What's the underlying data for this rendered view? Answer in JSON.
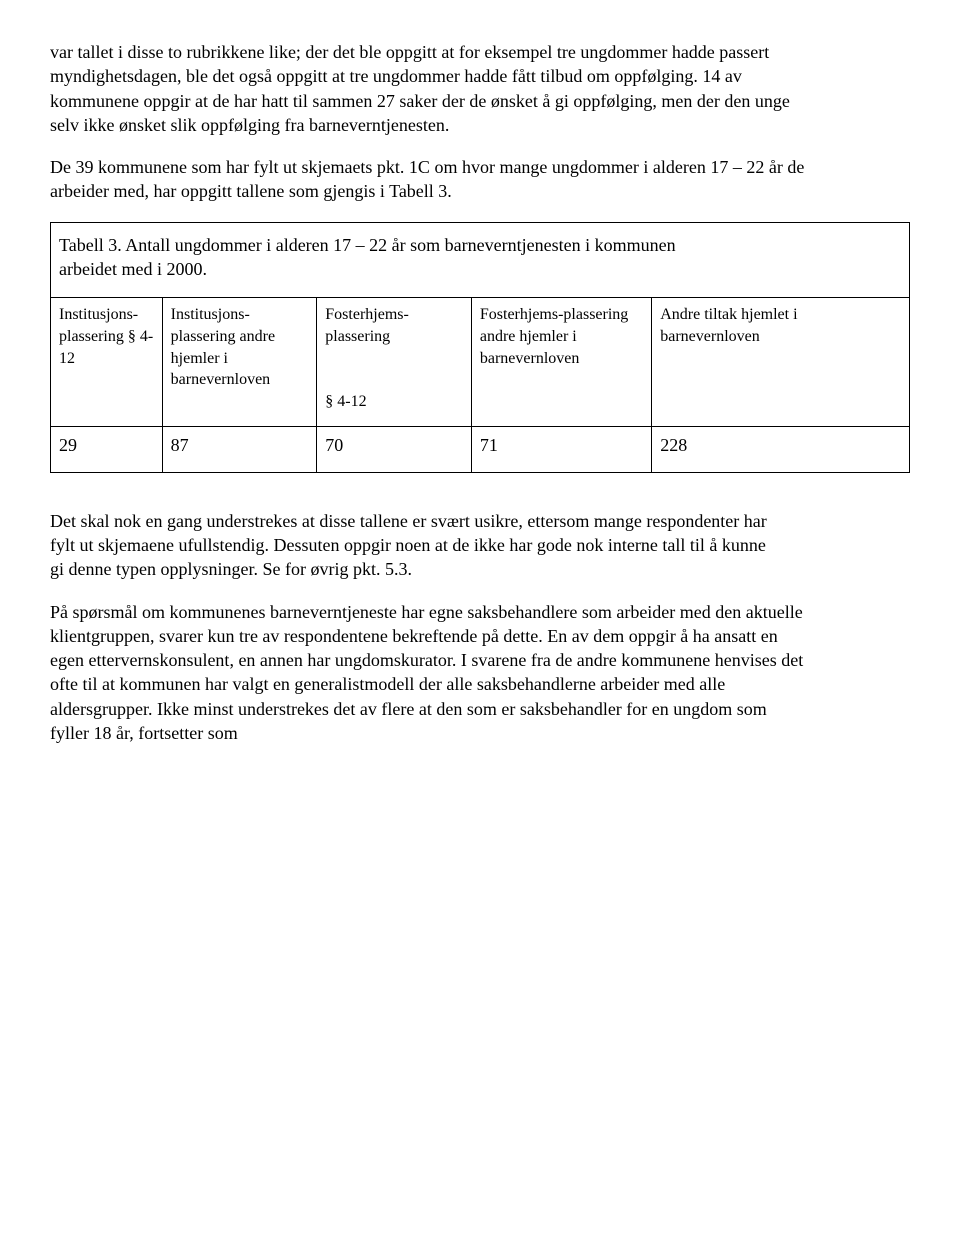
{
  "paragraphs": {
    "p1": "var tallet i disse to rubrikkene like; der det ble oppgitt at for eksempel tre ungdommer hadde passert myndighetsdagen, ble det også oppgitt at tre ungdommer hadde fått tilbud om oppfølging. 14 av kommunene oppgir at de har hatt til sammen 27 saker der de ønsket å gi oppfølging, men der den unge selv ikke ønsket slik oppfølging fra barneverntjenesten.",
    "p2": "De 39 kommunene som har fylt ut skjemaets pkt. 1C om hvor mange ungdommer i alderen 17 – 22 år de arbeider med, har oppgitt tallene som gjengis i Tabell 3.",
    "p3": "Det skal nok en gang understrekes at disse tallene er svært usikre, ettersom mange respondenter har fylt ut skjemaene ufullstendig. Dessuten oppgir noen at de ikke har gode nok interne tall til å kunne gi denne typen opplysninger. Se for øvrig pkt. 5.3.",
    "p4": "På spørsmål om kommunenes barneverntjeneste har egne saksbehandlere som arbeider med den aktuelle klientgruppen, svarer kun tre av respondentene bekreftende på dette. En av dem oppgir å ha ansatt en egen ettervernskonsulent, en annen har ungdomskurator. I svarene fra de andre kommunene henvises det ofte til at kommunen har valgt en generalistmodell der alle saksbehandlerne arbeider med alle aldersgrupper. Ikke minst understrekes det av flere at den som er saksbehandler for en ungdom som fyller 18 år, fortsetter som"
  },
  "table": {
    "caption": "Tabell 3. Antall ungdommer i alderen 17 – 22 år som barneverntjenesten i kommunen arbeidet med i 2000.",
    "columns": [
      "Institusjons-plassering § 4-12",
      "Institusjons-plassering andre hjemler i barnevernloven",
      "Fosterhjems-plassering\n\n§ 4-12",
      "Fosterhjems-plassering andre hjemler i barnevernloven",
      "Andre tiltak hjemlet i barnevernloven"
    ],
    "col_widths_pct": [
      13,
      18,
      18,
      21,
      30
    ],
    "header_fontsize": 16,
    "body_fontsize": 18,
    "border_color": "#000000",
    "background_color": "#ffffff",
    "rows": [
      [
        "29",
        "87",
        "70",
        "71",
        "228"
      ]
    ]
  }
}
